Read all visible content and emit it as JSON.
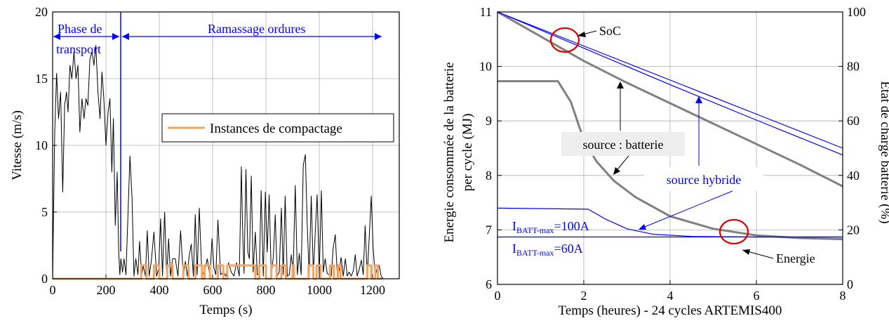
{
  "chart_data": [
    {
      "type": "line",
      "xlabel": "Temps (s)",
      "ylabel": "Vitesse (m/s)",
      "xlim": [
        0,
        1300
      ],
      "ylim": [
        0,
        20
      ],
      "xticks": [
        "0",
        "200",
        "400",
        "600",
        "800",
        "1000",
        "1200"
      ],
      "yticks": [
        "0",
        "5",
        "10",
        "15",
        "20"
      ],
      "grid": true,
      "legend": {
        "placement": "center-right",
        "entries": [
          "Instances de compactage"
        ]
      },
      "annotations": {
        "phase1": [
          "Phase de",
          "transport"
        ],
        "phase2": "Ramassage ordures"
      },
      "series": [
        {
          "name": "",
          "color": "#000000",
          "x": [
            0,
            8,
            15,
            22,
            30,
            38,
            45,
            52,
            58,
            65,
            72,
            80,
            88,
            95,
            102,
            110,
            118,
            125,
            132,
            140,
            148,
            155,
            162,
            170,
            178,
            185,
            192,
            200,
            208,
            215,
            222,
            228,
            235,
            242,
            248,
            252,
            256,
            262,
            268,
            275,
            282,
            290,
            298,
            305,
            312,
            320,
            326,
            334,
            340,
            348,
            355,
            362,
            370,
            380,
            390,
            398,
            405,
            412,
            420,
            428,
            435,
            442,
            450,
            460,
            470,
            480,
            490,
            498,
            505,
            512,
            520,
            528,
            535,
            542,
            550,
            560,
            570,
            580,
            590,
            598,
            605,
            612,
            620,
            630,
            640,
            650,
            660,
            670,
            680,
            690,
            700,
            708,
            712,
            718,
            725,
            732,
            738,
            745,
            752,
            760,
            768,
            775,
            782,
            790,
            798,
            805,
            812,
            820,
            828,
            835,
            842,
            850,
            858,
            865,
            872,
            880,
            888,
            895,
            902,
            910,
            918,
            925,
            932,
            940,
            948,
            955,
            962,
            970,
            978,
            985,
            992,
            1000,
            1008,
            1015,
            1022,
            1030,
            1038,
            1045,
            1052,
            1060,
            1068,
            1075,
            1082,
            1090,
            1098,
            1105,
            1112,
            1120,
            1128,
            1135,
            1142,
            1150,
            1158,
            1165,
            1172,
            1180,
            1188,
            1195,
            1202,
            1210,
            1218,
            1225,
            1232,
            1240
          ],
          "y": [
            0,
            11,
            15.4,
            12,
            14,
            6.5,
            13,
            14,
            12.5,
            16,
            15,
            17,
            15,
            16,
            11,
            13.5,
            12,
            13.5,
            13,
            16.5,
            17,
            16,
            17.5,
            14,
            12,
            15.5,
            13.5,
            10,
            12.5,
            13.5,
            8,
            12,
            4,
            8,
            2,
            0.3,
            1.5,
            0.5,
            1.5,
            0.3,
            4.5,
            9.2,
            6,
            0.2,
            1.5,
            0.3,
            2.8,
            0.3,
            1,
            0.2,
            3.6,
            0.2,
            1.3,
            3.5,
            0.2,
            0.8,
            4.5,
            0.2,
            5,
            0.2,
            3,
            0.2,
            1.5,
            1.5,
            0.2,
            3.6,
            0.2,
            1.3,
            0.2,
            1.7,
            2.6,
            0.2,
            4.8,
            0.3,
            5.3,
            0.2,
            0.6,
            1.5,
            0.2,
            3,
            0.8,
            0.3,
            4.4,
            0.3,
            0.5,
            0.2,
            1.2,
            0.5,
            0.2,
            1.2,
            0.2,
            8.4,
            4,
            0.4,
            8.2,
            2,
            1.5,
            7.7,
            0.5,
            3.5,
            0.3,
            0.4,
            6.6,
            0.2,
            6.5,
            2,
            6.3,
            0.2,
            1.7,
            4.8,
            0.2,
            0.5,
            5.3,
            0.3,
            6.2,
            0.2,
            0.3,
            1.8,
            0.5,
            7,
            0.3,
            1.9,
            0.3,
            8.5,
            9.3,
            4,
            0.3,
            6.2,
            0.3,
            3.5,
            6.3,
            0.3,
            6.6,
            0.5,
            1.5,
            0.4,
            0.3,
            0.2,
            2.3,
            3.3,
            0.2,
            0.7,
            1.6,
            0.2,
            1.5,
            0.2,
            0.5,
            0.2,
            0.6,
            1.8,
            0.2,
            0.7,
            1.4,
            0.3,
            4,
            0.2,
            3.3,
            6.2,
            2.3,
            0.2,
            0.8,
            1,
            0.2,
            0
          ]
        },
        {
          "name": "Instances de compactage",
          "color": "#f4a460",
          "x": [
            0,
            332,
            332,
            352,
            352,
            380,
            380,
            400,
            400,
            430,
            430,
            450,
            450,
            490,
            490,
            510,
            510,
            535,
            535,
            560,
            560,
            570,
            570,
            590,
            590,
            620,
            620,
            640,
            640,
            655,
            655,
            760,
            760,
            775,
            775,
            800,
            800,
            820,
            820,
            840,
            840,
            858,
            858,
            875,
            875,
            900,
            900,
            905,
            905,
            960,
            960,
            978,
            978,
            990,
            990,
            1005,
            1005,
            1040,
            1040,
            1055,
            1055,
            1070,
            1070,
            1080,
            1080,
            1180,
            1180,
            1195,
            1195,
            1210,
            1210,
            1220,
            1220,
            1235
          ],
          "y": [
            0,
            0,
            1,
            1,
            0,
            0,
            1,
            1,
            0,
            0,
            1,
            1,
            0,
            0,
            1,
            1,
            0,
            0,
            1,
            1,
            0,
            0,
            1,
            1,
            0,
            0,
            1,
            1,
            0,
            0,
            1,
            1,
            0,
            0,
            1,
            1,
            0,
            0,
            1,
            1,
            0,
            0,
            1,
            1,
            0,
            0,
            1,
            1,
            0,
            0,
            1,
            1,
            0,
            0,
            1,
            1,
            0,
            0,
            1,
            1,
            0,
            0,
            1,
            1,
            0,
            0,
            1,
            1,
            0,
            0,
            1,
            1,
            0,
            0
          ]
        }
      ]
    },
    {
      "type": "line",
      "xlabel": "Temps (heures) - 24 cycles ARTEMIS400",
      "ylabel": [
        "Energie consommée de la batterie",
        "per cycle (MJ)"
      ],
      "y2label": "Etat de charge batterie (%)",
      "xlim": [
        0,
        8
      ],
      "ylim": [
        6,
        11
      ],
      "y2lim": [
        0,
        100
      ],
      "xticks": [
        "0",
        "2",
        "4",
        "6",
        "8"
      ],
      "yticks": [
        "6",
        "7",
        "8",
        "9",
        "10",
        "11"
      ],
      "y2ticks": [
        "0",
        "20",
        "40",
        "60",
        "80",
        "100"
      ],
      "grid": true,
      "annotations": {
        "soc": "SoC",
        "energie": "Energie",
        "source_batterie": "source : batterie",
        "source_hybride": "source hybride",
        "i100_main": "I",
        "i100_sub": "BATT-max",
        "i100_rest": "=100A",
        "i60_main": "I",
        "i60_sub": "BATT-max",
        "i60_rest": "=60A"
      },
      "series": [
        {
          "name": "",
          "axis": "right",
          "color": "#808080",
          "x": [
            0,
            1,
            2,
            3,
            4,
            5,
            6,
            7,
            8
          ],
          "y": [
            100,
            91,
            82,
            74,
            66.5,
            59,
            51.5,
            44,
            36
          ]
        },
        {
          "name": "",
          "axis": "right",
          "color": "#0000ff",
          "x": [
            0,
            2,
            4,
            6,
            8
          ],
          "y": [
            100,
            87.5,
            75,
            62.5,
            50
          ]
        },
        {
          "name": "",
          "axis": "right",
          "color": "#0000ff",
          "x": [
            0,
            2,
            4,
            6,
            8
          ],
          "y": [
            100,
            86.7,
            73.3,
            60.3,
            47.5
          ]
        },
        {
          "name": "",
          "axis": "left",
          "color": "#808080",
          "x": [
            0,
            1.4,
            1.7,
            2.0,
            2.3,
            2.7,
            3.2,
            4,
            5,
            6,
            7,
            8
          ],
          "y": [
            9.73,
            9.73,
            9.35,
            8.65,
            8.25,
            7.9,
            7.6,
            7.25,
            7.02,
            6.9,
            6.85,
            6.83
          ]
        },
        {
          "name": "",
          "axis": "left",
          "color": "#0000ff",
          "x": [
            0,
            2.1,
            2.5,
            3.0,
            3.6,
            4.5,
            6,
            8
          ],
          "y": [
            7.4,
            7.38,
            7.2,
            7.02,
            6.92,
            6.88,
            6.87,
            6.87
          ]
        },
        {
          "name": "",
          "axis": "left",
          "color": "#0000ff",
          "x": [
            0,
            8
          ],
          "y": [
            6.87,
            6.87
          ]
        }
      ]
    }
  ]
}
